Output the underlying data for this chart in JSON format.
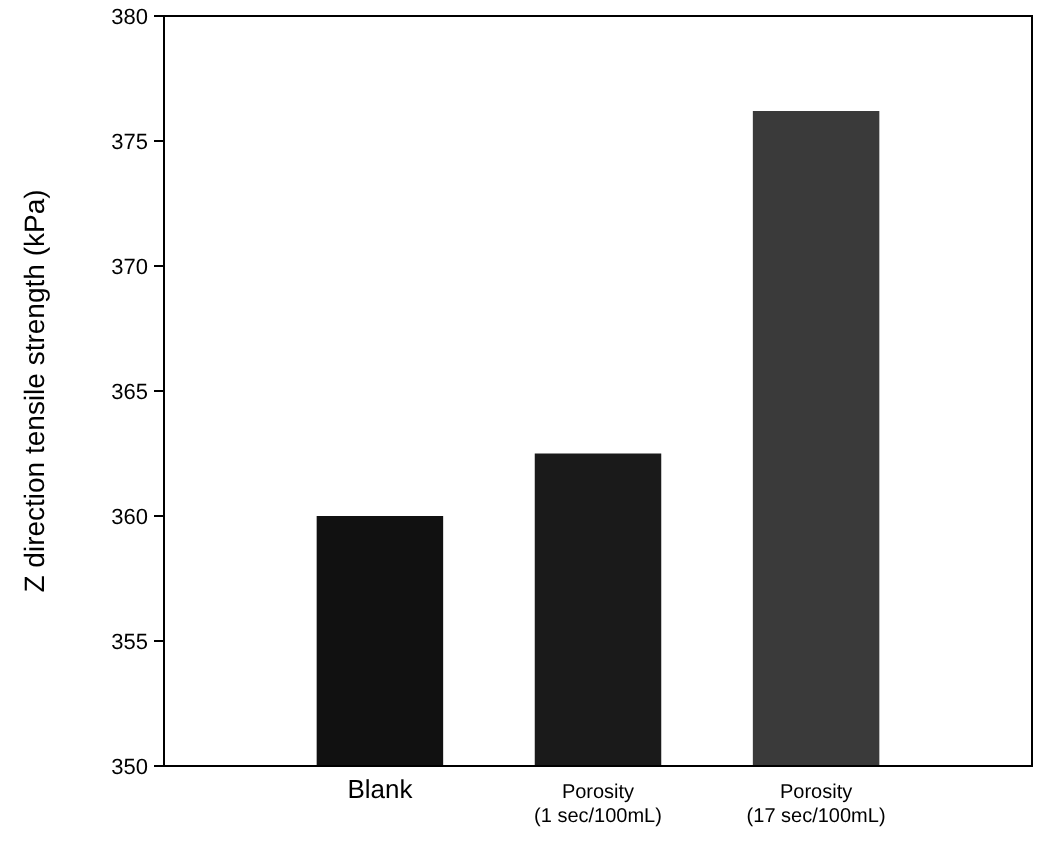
{
  "chart_data": {
    "type": "bar",
    "ylabel": "Z direction tensile strength (kPa)",
    "categories": [
      "Blank",
      "Porosity\n(1 sec/100mL)",
      "Porosity\n(17 sec/100mL)"
    ],
    "values": [
      360,
      362.5,
      376.2
    ],
    "colors": [
      "#111111",
      "#1a1a1a",
      "#3a3a3a"
    ],
    "ylim": [
      350,
      380
    ],
    "yticks": [
      350,
      355,
      360,
      365,
      370,
      375,
      380
    ],
    "grid": false
  }
}
